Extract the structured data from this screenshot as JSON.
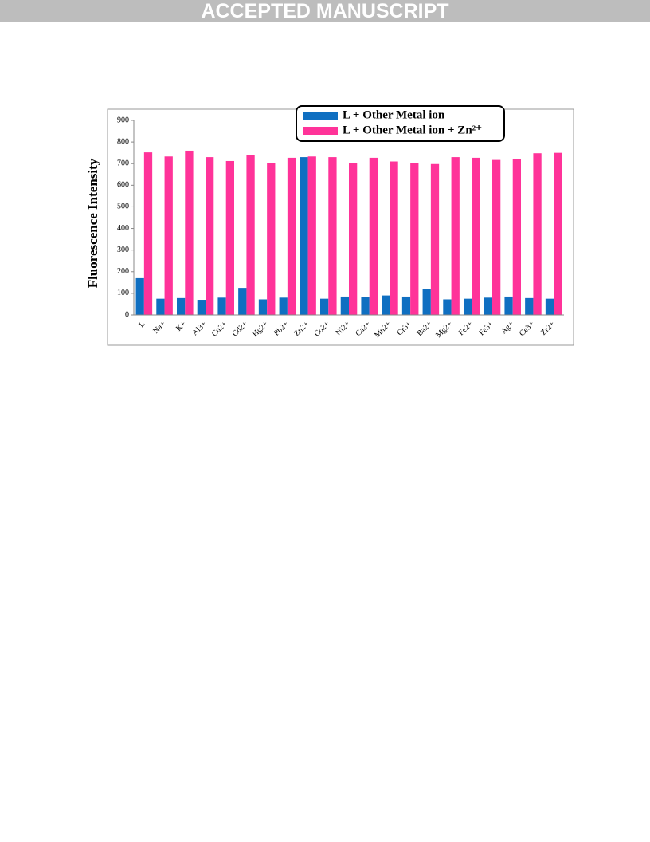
{
  "header": {
    "title": "ACCEPTED MANUSCRIPT"
  },
  "chart_data": {
    "type": "bar",
    "y_label": "Fluorescence Intensity",
    "categories": [
      "L",
      "Na+",
      "K+",
      "Al3+",
      "Cu2+",
      "Cd2+",
      "Hg2+",
      "Pb2+",
      "Zn2+",
      "Co2+",
      "Ni2+",
      "Ca2+",
      "Mn2+",
      "Cr3+",
      "Ba2+",
      "Mg2+",
      "Fe2+",
      "Fe3+",
      "Ag+",
      "Ce3+",
      "Zr2+"
    ],
    "series": [
      {
        "name": "L + Other Metal ion",
        "color": "#0f6fc1",
        "values": [
          170,
          75,
          78,
          70,
          80,
          125,
          72,
          80,
          730,
          75,
          85,
          82,
          90,
          85,
          120,
          72,
          75,
          80,
          85,
          78,
          75
        ]
      },
      {
        "name": "L + Other Metal ion + Zn²⁺",
        "color": "#ff3399",
        "values": [
          752,
          733,
          760,
          730,
          712,
          740,
          703,
          727,
          733,
          730,
          702,
          727,
          710,
          702,
          698,
          730,
          727,
          717,
          720,
          748,
          750
        ]
      }
    ],
    "ylim": [
      0,
      900
    ],
    "yticks": [
      0,
      100,
      200,
      300,
      400,
      500,
      600,
      700,
      800,
      900
    ],
    "legend": "top-right"
  }
}
